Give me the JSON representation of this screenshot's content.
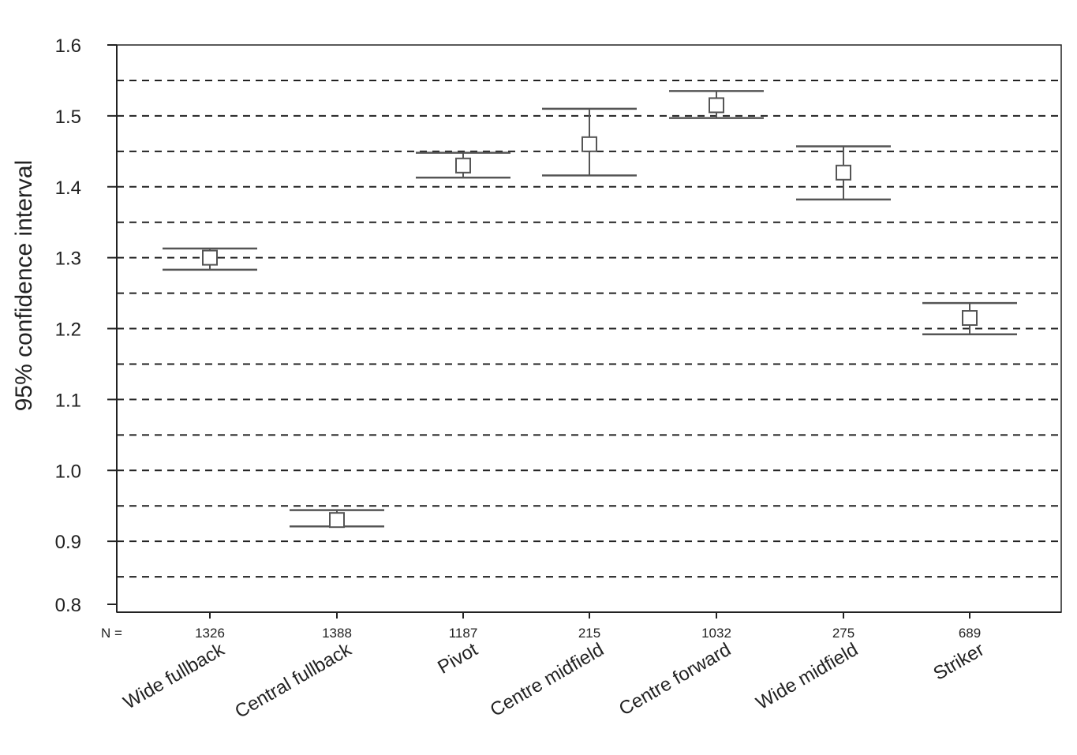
{
  "chart_data": {
    "type": "error_bar",
    "ylabel": "95% confidence interval",
    "ylim": [
      0.8,
      1.6
    ],
    "y_ticks": [
      "0.8",
      "0.9",
      "1.0",
      "1.1",
      "1.2",
      "1.3",
      "1.4",
      "1.5",
      "1.6"
    ],
    "gridlines": "dashed horizontal every 0.05",
    "n_label": "N =",
    "categories": [
      "Wide fullback",
      "Central fullback",
      "Pivot",
      "Centre midfield",
      "Centre forward",
      "Wide midfield",
      "Striker"
    ],
    "n": [
      "1326",
      "1388",
      "1187",
      "215",
      "1032",
      "275",
      "689"
    ],
    "mean": [
      1.3,
      0.93,
      1.43,
      1.46,
      1.515,
      1.42,
      1.215
    ],
    "lower": [
      1.283,
      0.921,
      1.413,
      1.416,
      1.497,
      1.382,
      1.192
    ],
    "upper": [
      1.313,
      0.944,
      1.448,
      1.51,
      1.535,
      1.457,
      1.236
    ]
  },
  "colors": {
    "line": "#555555",
    "grid": "#222222",
    "text": "#222222"
  }
}
